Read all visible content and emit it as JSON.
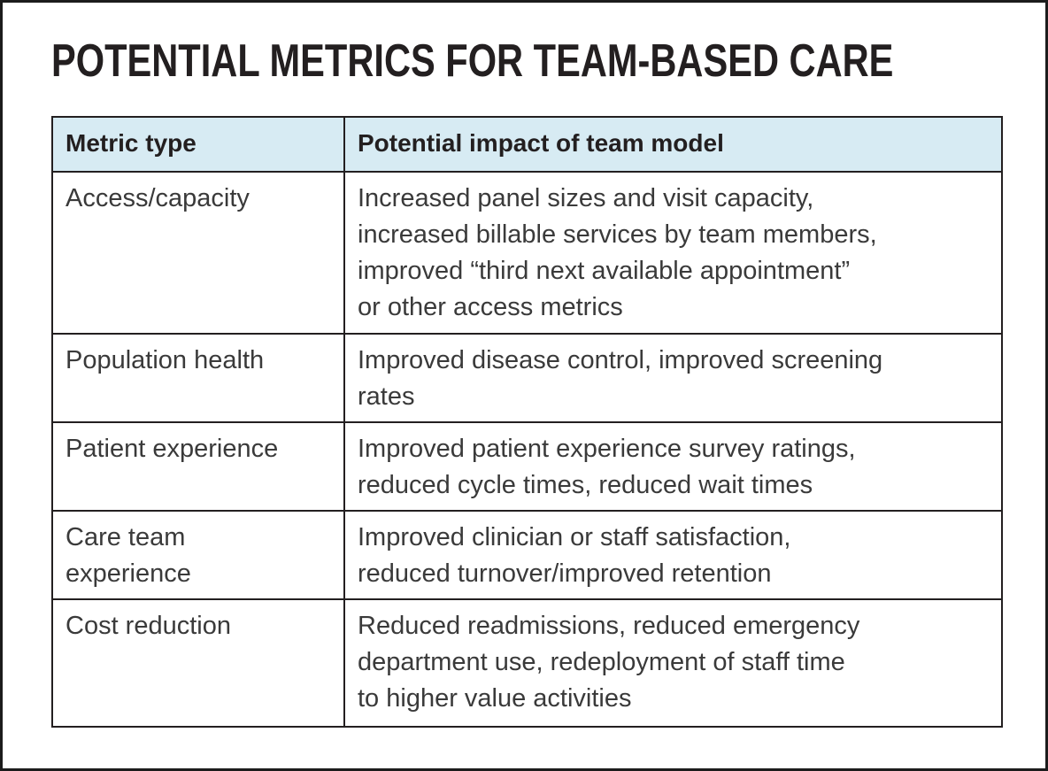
{
  "title": "POTENTIAL METRICS FOR TEAM-BASED CARE",
  "table": {
    "columns": [
      "Metric type",
      "Potential impact of team model"
    ],
    "rows": [
      {
        "metric": "Access/capacity",
        "impact": "Increased panel sizes and visit capacity,\nincreased billable services by team members,\nimproved “third next available appointment”\nor other access metrics"
      },
      {
        "metric": "Population health",
        "impact": "Improved disease control, improved screening\nrates"
      },
      {
        "metric": "Patient experience",
        "impact": "Improved patient experience survey ratings,\nreduced cycle times, reduced wait times"
      },
      {
        "metric": "Care team\nexperience",
        "impact": "Improved clinician or staff satisfaction,\nreduced turnover/improved retention"
      },
      {
        "metric": "Cost reduction",
        "impact": "Reduced readmissions, reduced emergency\ndepartment use, redeployment of staff time\nto higher value activities"
      }
    ]
  },
  "colors": {
    "frame_border": "#1c1c1c",
    "table_border": "#231f20",
    "header_bg": "#d7ebf3",
    "header_text": "#231f20",
    "title_text": "#231f20",
    "body_text": "#3a3a3a"
  }
}
